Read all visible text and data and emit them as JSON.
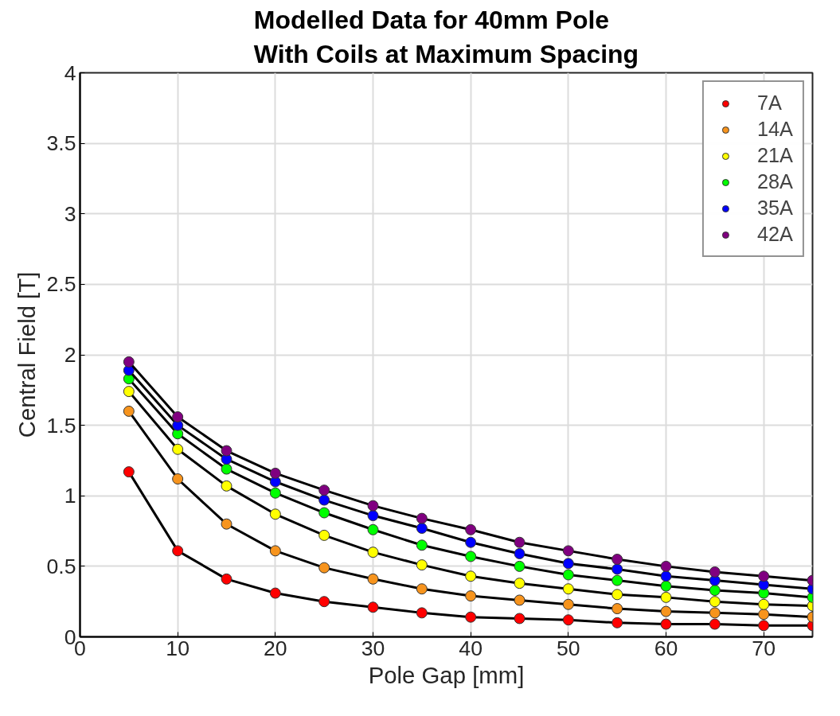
{
  "chart_data": {
    "type": "line",
    "title": "Modelled Data for 40mm Pole\nWith Coils at Maximum Spacing",
    "xlabel": "Pole Gap [mm]",
    "ylabel": "Central Field [T]",
    "x": [
      5,
      10,
      15,
      20,
      25,
      30,
      35,
      40,
      45,
      50,
      55,
      60,
      65,
      70,
      75
    ],
    "series": [
      {
        "name": "7A",
        "color": "#ff0000",
        "values": [
          1.17,
          0.61,
          0.41,
          0.31,
          0.25,
          0.21,
          0.17,
          0.14,
          0.13,
          0.12,
          0.1,
          0.09,
          0.09,
          0.08,
          0.08
        ]
      },
      {
        "name": "14A",
        "color": "#f7941d",
        "values": [
          1.6,
          1.12,
          0.8,
          0.61,
          0.49,
          0.41,
          0.34,
          0.29,
          0.26,
          0.23,
          0.2,
          0.18,
          0.17,
          0.16,
          0.14
        ]
      },
      {
        "name": "21A",
        "color": "#ffff00",
        "values": [
          1.74,
          1.33,
          1.07,
          0.87,
          0.72,
          0.6,
          0.51,
          0.43,
          0.38,
          0.34,
          0.3,
          0.28,
          0.25,
          0.23,
          0.22
        ]
      },
      {
        "name": "28A",
        "color": "#00ff00",
        "values": [
          1.83,
          1.44,
          1.19,
          1.02,
          0.88,
          0.76,
          0.65,
          0.57,
          0.5,
          0.44,
          0.4,
          0.36,
          0.33,
          0.31,
          0.28
        ]
      },
      {
        "name": "35A",
        "color": "#0000ff",
        "values": [
          1.89,
          1.5,
          1.26,
          1.1,
          0.97,
          0.86,
          0.77,
          0.67,
          0.59,
          0.52,
          0.48,
          0.43,
          0.4,
          0.37,
          0.34
        ]
      },
      {
        "name": "42A",
        "color": "#800080",
        "values": [
          1.95,
          1.56,
          1.32,
          1.16,
          1.04,
          0.93,
          0.84,
          0.76,
          0.67,
          0.61,
          0.55,
          0.5,
          0.46,
          0.43,
          0.4
        ]
      }
    ],
    "xlim": [
      0,
      75
    ],
    "ylim": [
      0,
      4
    ],
    "xticks": [
      0,
      10,
      20,
      30,
      40,
      50,
      60,
      70
    ],
    "yticks": [
      0,
      0.5,
      1,
      1.5,
      2,
      2.5,
      3,
      3.5,
      4
    ],
    "grid": true,
    "legend": "top right",
    "marker": "circle",
    "line_style": "solid"
  }
}
